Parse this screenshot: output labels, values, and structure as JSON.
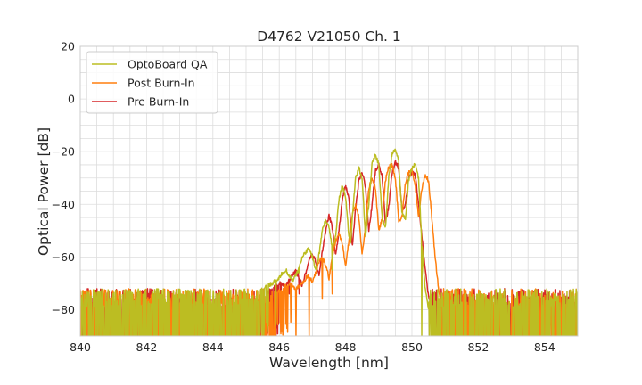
{
  "chart_data": {
    "type": "line",
    "title": "D4762 V21050 Ch. 1",
    "xlabel": "Wavelength [nm]",
    "ylabel": "Optical Power [dB]",
    "xlim": [
      840,
      855
    ],
    "ylim": [
      -90,
      20
    ],
    "xticks": [
      840,
      842,
      844,
      846,
      848,
      850,
      852,
      854
    ],
    "yticks": [
      20,
      0,
      -20,
      -40,
      -60,
      -80
    ],
    "grid": true,
    "legend_position": "top-left",
    "series": [
      {
        "name": "OptoBoard QA",
        "color": "#bcbd22",
        "noise_floor": -80,
        "spectrum": [
          [
            845.4,
            -73
          ],
          [
            845.6,
            -71
          ],
          [
            845.8,
            -70
          ],
          [
            846.0,
            -68
          ],
          [
            846.1,
            -66
          ],
          [
            846.2,
            -65
          ],
          [
            846.3,
            -67
          ],
          [
            846.4,
            -69
          ],
          [
            846.5,
            -67
          ],
          [
            846.6,
            -64
          ],
          [
            846.7,
            -60
          ],
          [
            846.8,
            -58
          ],
          [
            846.9,
            -57
          ],
          [
            847.0,
            -60
          ],
          [
            847.1,
            -65
          ],
          [
            847.2,
            -59
          ],
          [
            847.3,
            -50
          ],
          [
            847.4,
            -46
          ],
          [
            847.5,
            -49
          ],
          [
            847.6,
            -57
          ],
          [
            847.7,
            -52
          ],
          [
            847.8,
            -38
          ],
          [
            847.9,
            -33
          ],
          [
            848.0,
            -37
          ],
          [
            848.1,
            -52
          ],
          [
            848.15,
            -55
          ],
          [
            848.2,
            -45
          ],
          [
            848.3,
            -30
          ],
          [
            848.4,
            -26
          ],
          [
            848.5,
            -31
          ],
          [
            848.6,
            -52
          ],
          [
            848.7,
            -40
          ],
          [
            848.8,
            -24
          ],
          [
            848.9,
            -21
          ],
          [
            849.0,
            -25
          ],
          [
            849.1,
            -45
          ],
          [
            849.2,
            -49
          ],
          [
            849.3,
            -30
          ],
          [
            849.4,
            -21
          ],
          [
            849.5,
            -19
          ],
          [
            849.6,
            -24
          ],
          [
            849.7,
            -43
          ],
          [
            849.8,
            -46
          ],
          [
            849.9,
            -31
          ],
          [
            850.0,
            -26
          ],
          [
            850.1,
            -25
          ],
          [
            850.2,
            -30
          ],
          [
            850.3,
            -55
          ],
          [
            850.4,
            -72
          ],
          [
            850.5,
            -80
          ]
        ],
        "spikes": [
          [
            846.6,
            -66
          ],
          [
            847.6,
            -65
          ],
          [
            850.3,
            -90
          ]
        ]
      },
      {
        "name": "Post Burn-In",
        "color": "#ff7f0e",
        "noise_floor": -80,
        "spectrum": [
          [
            845.9,
            -74
          ],
          [
            846.1,
            -72
          ],
          [
            846.3,
            -70
          ],
          [
            846.5,
            -72
          ],
          [
            846.7,
            -70
          ],
          [
            846.8,
            -68
          ],
          [
            846.9,
            -67
          ],
          [
            847.0,
            -70
          ],
          [
            847.1,
            -66
          ],
          [
            847.2,
            -62
          ],
          [
            847.3,
            -60
          ],
          [
            847.4,
            -63
          ],
          [
            847.5,
            -68
          ],
          [
            847.6,
            -60
          ],
          [
            847.7,
            -54
          ],
          [
            847.8,
            -51
          ],
          [
            847.9,
            -55
          ],
          [
            848.0,
            -63
          ],
          [
            848.1,
            -54
          ],
          [
            848.2,
            -44
          ],
          [
            848.3,
            -40
          ],
          [
            848.4,
            -45
          ],
          [
            848.5,
            -59
          ],
          [
            848.6,
            -48
          ],
          [
            848.7,
            -34
          ],
          [
            848.8,
            -30
          ],
          [
            848.9,
            -34
          ],
          [
            849.0,
            -50
          ],
          [
            849.1,
            -46
          ],
          [
            849.2,
            -31
          ],
          [
            849.3,
            -26
          ],
          [
            849.4,
            -25
          ],
          [
            849.5,
            -30
          ],
          [
            849.6,
            -46
          ],
          [
            849.7,
            -45
          ],
          [
            849.8,
            -32
          ],
          [
            849.9,
            -28
          ],
          [
            850.0,
            -27
          ],
          [
            850.1,
            -33
          ],
          [
            850.2,
            -45
          ],
          [
            850.3,
            -34
          ],
          [
            850.4,
            -29
          ],
          [
            850.5,
            -31
          ],
          [
            850.6,
            -45
          ],
          [
            850.7,
            -60
          ],
          [
            850.8,
            -72
          ],
          [
            850.9,
            -80
          ]
        ],
        "spikes": [
          [
            846.5,
            -90
          ],
          [
            846.9,
            -90
          ],
          [
            847.3,
            -76
          ],
          [
            847.6,
            -74
          ]
        ]
      },
      {
        "name": "Pre Burn-In",
        "color": "#d62728",
        "noise_floor": -80,
        "spectrum": [
          [
            845.6,
            -74
          ],
          [
            845.8,
            -72
          ],
          [
            846.0,
            -70
          ],
          [
            846.2,
            -71
          ],
          [
            846.4,
            -67
          ],
          [
            846.5,
            -65
          ],
          [
            846.6,
            -68
          ],
          [
            846.7,
            -71
          ],
          [
            846.8,
            -66
          ],
          [
            846.9,
            -61
          ],
          [
            847.0,
            -59
          ],
          [
            847.1,
            -62
          ],
          [
            847.2,
            -67
          ],
          [
            847.3,
            -58
          ],
          [
            847.4,
            -50
          ],
          [
            847.5,
            -44
          ],
          [
            847.6,
            -49
          ],
          [
            847.7,
            -60
          ],
          [
            847.8,
            -50
          ],
          [
            847.9,
            -38
          ],
          [
            848.0,
            -33
          ],
          [
            848.1,
            -38
          ],
          [
            848.2,
            -56
          ],
          [
            848.3,
            -42
          ],
          [
            848.4,
            -31
          ],
          [
            848.5,
            -28
          ],
          [
            848.6,
            -33
          ],
          [
            848.7,
            -50
          ],
          [
            848.8,
            -40
          ],
          [
            848.9,
            -27
          ],
          [
            849.0,
            -25
          ],
          [
            849.1,
            -29
          ],
          [
            849.2,
            -47
          ],
          [
            849.3,
            -41
          ],
          [
            849.4,
            -28
          ],
          [
            849.5,
            -24
          ],
          [
            849.6,
            -26
          ],
          [
            849.7,
            -42
          ],
          [
            849.8,
            -40
          ],
          [
            849.9,
            -30
          ],
          [
            850.0,
            -28
          ],
          [
            850.1,
            -29
          ],
          [
            850.2,
            -40
          ],
          [
            850.3,
            -52
          ],
          [
            850.4,
            -65
          ],
          [
            850.5,
            -75
          ],
          [
            850.6,
            -80
          ]
        ],
        "spikes": [
          [
            845.9,
            -90
          ],
          [
            846.3,
            -74
          ],
          [
            846.6,
            -74
          ]
        ]
      }
    ]
  }
}
